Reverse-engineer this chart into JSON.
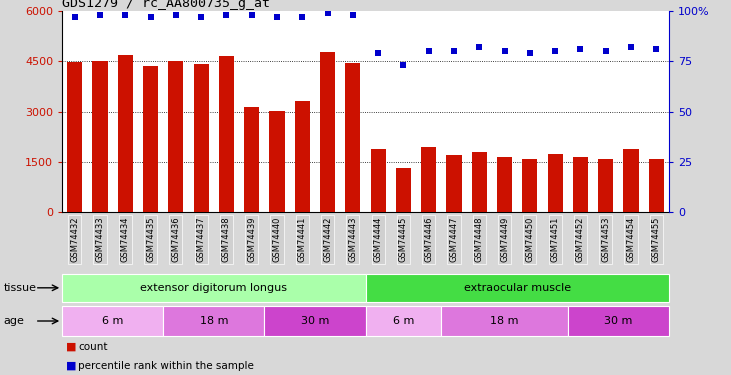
{
  "title": "GDS1279 / rc_AA800735_g_at",
  "categories": [
    "GSM74432",
    "GSM74433",
    "GSM74434",
    "GSM74435",
    "GSM74436",
    "GSM74437",
    "GSM74438",
    "GSM74439",
    "GSM74440",
    "GSM74441",
    "GSM74442",
    "GSM74443",
    "GSM74444",
    "GSM74445",
    "GSM74446",
    "GSM74447",
    "GSM74448",
    "GSM74449",
    "GSM74450",
    "GSM74451",
    "GSM74452",
    "GSM74453",
    "GSM74454",
    "GSM74455"
  ],
  "bar_values": [
    4480,
    4500,
    4700,
    4350,
    4520,
    4430,
    4650,
    3150,
    3010,
    3320,
    4770,
    4460,
    1880,
    1310,
    1950,
    1710,
    1800,
    1630,
    1590,
    1740,
    1640,
    1590,
    1870,
    1570
  ],
  "percentile_values": [
    97,
    98,
    98,
    97,
    98,
    97,
    98,
    98,
    97,
    97,
    99,
    98,
    79,
    73,
    80,
    80,
    82,
    80,
    79,
    80,
    81,
    80,
    82,
    81
  ],
  "bar_color": "#cc1100",
  "dot_color": "#0000cc",
  "ylim_left": [
    0,
    6000
  ],
  "ylim_right": [
    0,
    100
  ],
  "yticks_left": [
    0,
    1500,
    3000,
    4500,
    6000
  ],
  "ytick_labels_left": [
    "0",
    "1500",
    "3000",
    "4500",
    "6000"
  ],
  "yticks_right": [
    0,
    25,
    50,
    75,
    100
  ],
  "ytick_labels_right": [
    "0",
    "25",
    "50",
    "75",
    "100%"
  ],
  "tissue_groups": [
    {
      "label": "extensor digitorum longus",
      "start": 0,
      "end": 12,
      "color": "#aaffaa"
    },
    {
      "label": "extraocular muscle",
      "start": 12,
      "end": 24,
      "color": "#44dd44"
    }
  ],
  "age_groups": [
    {
      "label": "6 m",
      "start": 0,
      "end": 4,
      "color": "#f0b0f0"
    },
    {
      "label": "18 m",
      "start": 4,
      "end": 8,
      "color": "#dd77dd"
    },
    {
      "label": "30 m",
      "start": 8,
      "end": 12,
      "color": "#cc44cc"
    },
    {
      "label": "6 m",
      "start": 12,
      "end": 15,
      "color": "#f0b0f0"
    },
    {
      "label": "18 m",
      "start": 15,
      "end": 20,
      "color": "#dd77dd"
    },
    {
      "label": "30 m",
      "start": 20,
      "end": 24,
      "color": "#cc44cc"
    }
  ],
  "background_color": "#d8d8d8",
  "plot_bg_color": "#ffffff",
  "xticklabel_bg": "#d0d0d0"
}
